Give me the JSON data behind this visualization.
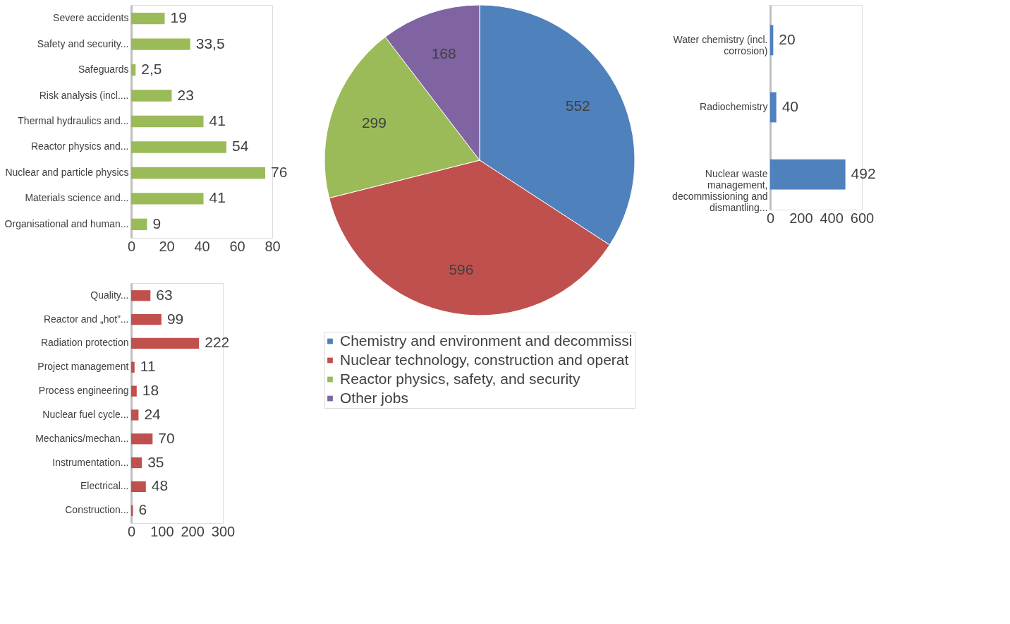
{
  "chart_data": [
    {
      "type": "bar",
      "orientation": "horizontal",
      "categories": [
        "Severe accidents",
        "Safety and security...",
        "Safeguards",
        "Risk analysis (incl....",
        "Thermal hydraulics and...",
        "Reactor physics and...",
        "Nuclear and particle physics",
        "Materials science and...",
        "Organisational and human..."
      ],
      "values": [
        19,
        33.5,
        2.5,
        23,
        41,
        54,
        76,
        41,
        9
      ],
      "value_labels": [
        "19",
        "33,5",
        "2,5",
        "23",
        "41",
        "54",
        "76",
        "41",
        "9"
      ],
      "color": "#9bbb59",
      "xlim": [
        0,
        80
      ],
      "xticks": [
        0,
        20,
        40,
        60,
        80
      ],
      "grid": false
    },
    {
      "type": "bar",
      "orientation": "horizontal",
      "categories": [
        "Quality...",
        "Reactor and „hot”...",
        "Radiation protection",
        "Project management",
        "Process engineering",
        "Nuclear fuel cycle...",
        "Mechanics/mechan...",
        "Instrumentation...",
        "Electrical...",
        "Construction..."
      ],
      "values": [
        63,
        99,
        222,
        11,
        18,
        24,
        70,
        35,
        48,
        6
      ],
      "data_labels": true,
      "color": "#c0504d",
      "xlim": [
        0,
        300
      ],
      "xticks": [
        0,
        100,
        200,
        300
      ],
      "grid": false
    },
    {
      "type": "pie",
      "categories": [
        "Chemistry and environment and decommissi",
        "Nuclear technology, construction and operat",
        "Reactor physics, safety, and security",
        "Other jobs"
      ],
      "values": [
        552,
        596,
        299,
        168
      ],
      "colors": [
        "#4f81bd",
        "#c0504d",
        "#9bbb59",
        "#8064a2"
      ],
      "data_labels": true,
      "legend": "bottom"
    },
    {
      "type": "bar",
      "orientation": "horizontal",
      "categories": [
        "Water chemistry (incl. corrosion)",
        "Radiochemistry",
        "Nuclear waste management, decommissioning and dismantling..."
      ],
      "values": [
        20,
        40,
        492
      ],
      "data_labels": true,
      "color": "#4f81bd",
      "xlim": [
        0,
        600
      ],
      "xticks": [
        0,
        200,
        400,
        600
      ],
      "grid": false
    }
  ]
}
